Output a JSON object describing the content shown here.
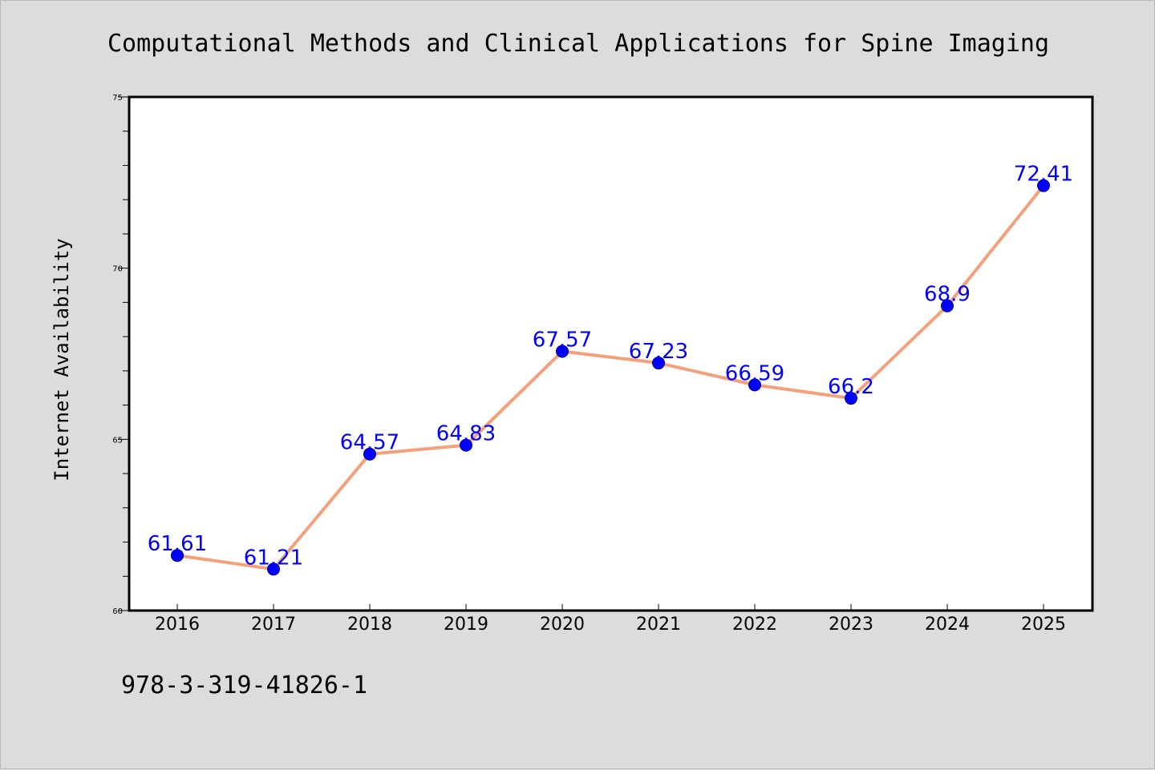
{
  "chart_data": {
    "type": "line",
    "title": "Computational Methods and Clinical Applications for Spine Imaging",
    "xlabel": "",
    "ylabel": "Internet Availability",
    "categories": [
      "2016",
      "2017",
      "2018",
      "2019",
      "2020",
      "2021",
      "2022",
      "2023",
      "2024",
      "2025"
    ],
    "series": [
      {
        "values": [
          61.61,
          61.21,
          64.57,
          64.83,
          67.57,
          67.23,
          66.59,
          66.2,
          68.9,
          72.41
        ],
        "data_labels": [
          "61.61",
          "61.21",
          "64.57",
          "64.83",
          "67.57",
          "67.23",
          "66.59",
          "66.2",
          "68.9",
          "72.41"
        ]
      }
    ],
    "ylim": [
      60,
      75
    ],
    "y_ticks": [
      "60",
      "65",
      "70",
      "75"
    ],
    "grid": false,
    "legend": "none"
  },
  "footer": {
    "text": "978-3-319-41826-1"
  },
  "colors": {
    "background": "#dcdcdc",
    "plot_area": "#ffffff",
    "line": "#f4a07a",
    "marker": "#0000ff",
    "label": "#0000ff",
    "axes": "#000000"
  }
}
